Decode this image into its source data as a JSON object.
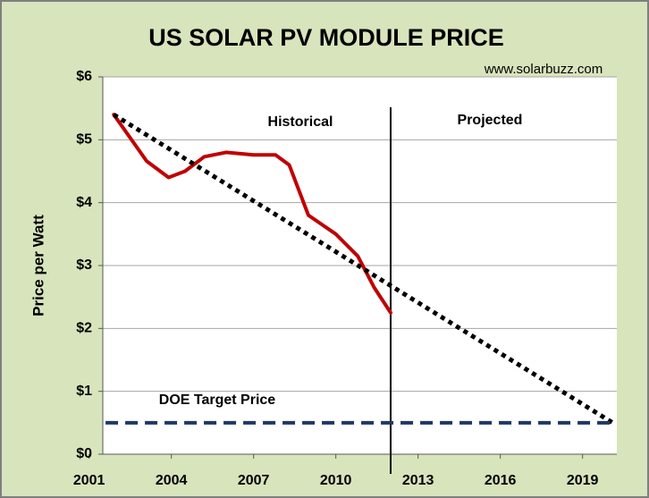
{
  "chart_data": {
    "type": "line",
    "title": "US SOLAR PV MODULE PRICE",
    "source": "www.solarbuzz.com",
    "ylabel": "Price per Watt",
    "annotations": [
      "Historical",
      "Projected",
      "DOE Target Price"
    ],
    "xlim": [
      2001.5,
      2020.25
    ],
    "xticks": [
      2001,
      2004,
      2007,
      2010,
      2013,
      2016,
      2019
    ],
    "ylim": [
      0,
      6
    ],
    "yticks": [
      {
        "value": 0,
        "label": "$0"
      },
      {
        "value": 1,
        "label": "$1"
      },
      {
        "value": 2,
        "label": "$2"
      },
      {
        "value": 3,
        "label": "$3"
      },
      {
        "value": 4,
        "label": "$4"
      },
      {
        "value": 5,
        "label": "$5"
      },
      {
        "value": 6,
        "label": "$6"
      }
    ],
    "grid": true,
    "vline": 2012,
    "series": [
      {
        "color": "#c00000",
        "style": "solid",
        "x": [
          2001.9,
          2003.1,
          2003.9,
          2004.5,
          2005.2,
          2006.0,
          2007.0,
          2007.8,
          2008.3,
          2009.0,
          2010.0,
          2010.8,
          2011.4,
          2012.0
        ],
        "values": [
          5.4,
          4.66,
          4.4,
          4.5,
          4.73,
          4.8,
          4.76,
          4.76,
          4.6,
          3.8,
          3.5,
          3.15,
          2.65,
          2.25
        ]
      },
      {
        "color": "#000000",
        "style": "dotted",
        "x": [
          2001.9,
          2020.1
        ],
        "values": [
          5.4,
          0.5
        ]
      },
      {
        "color": "#1f3864",
        "style": "dashed",
        "x": [
          2001.6,
          2020.2
        ],
        "values": [
          0.5,
          0.5
        ]
      }
    ]
  }
}
